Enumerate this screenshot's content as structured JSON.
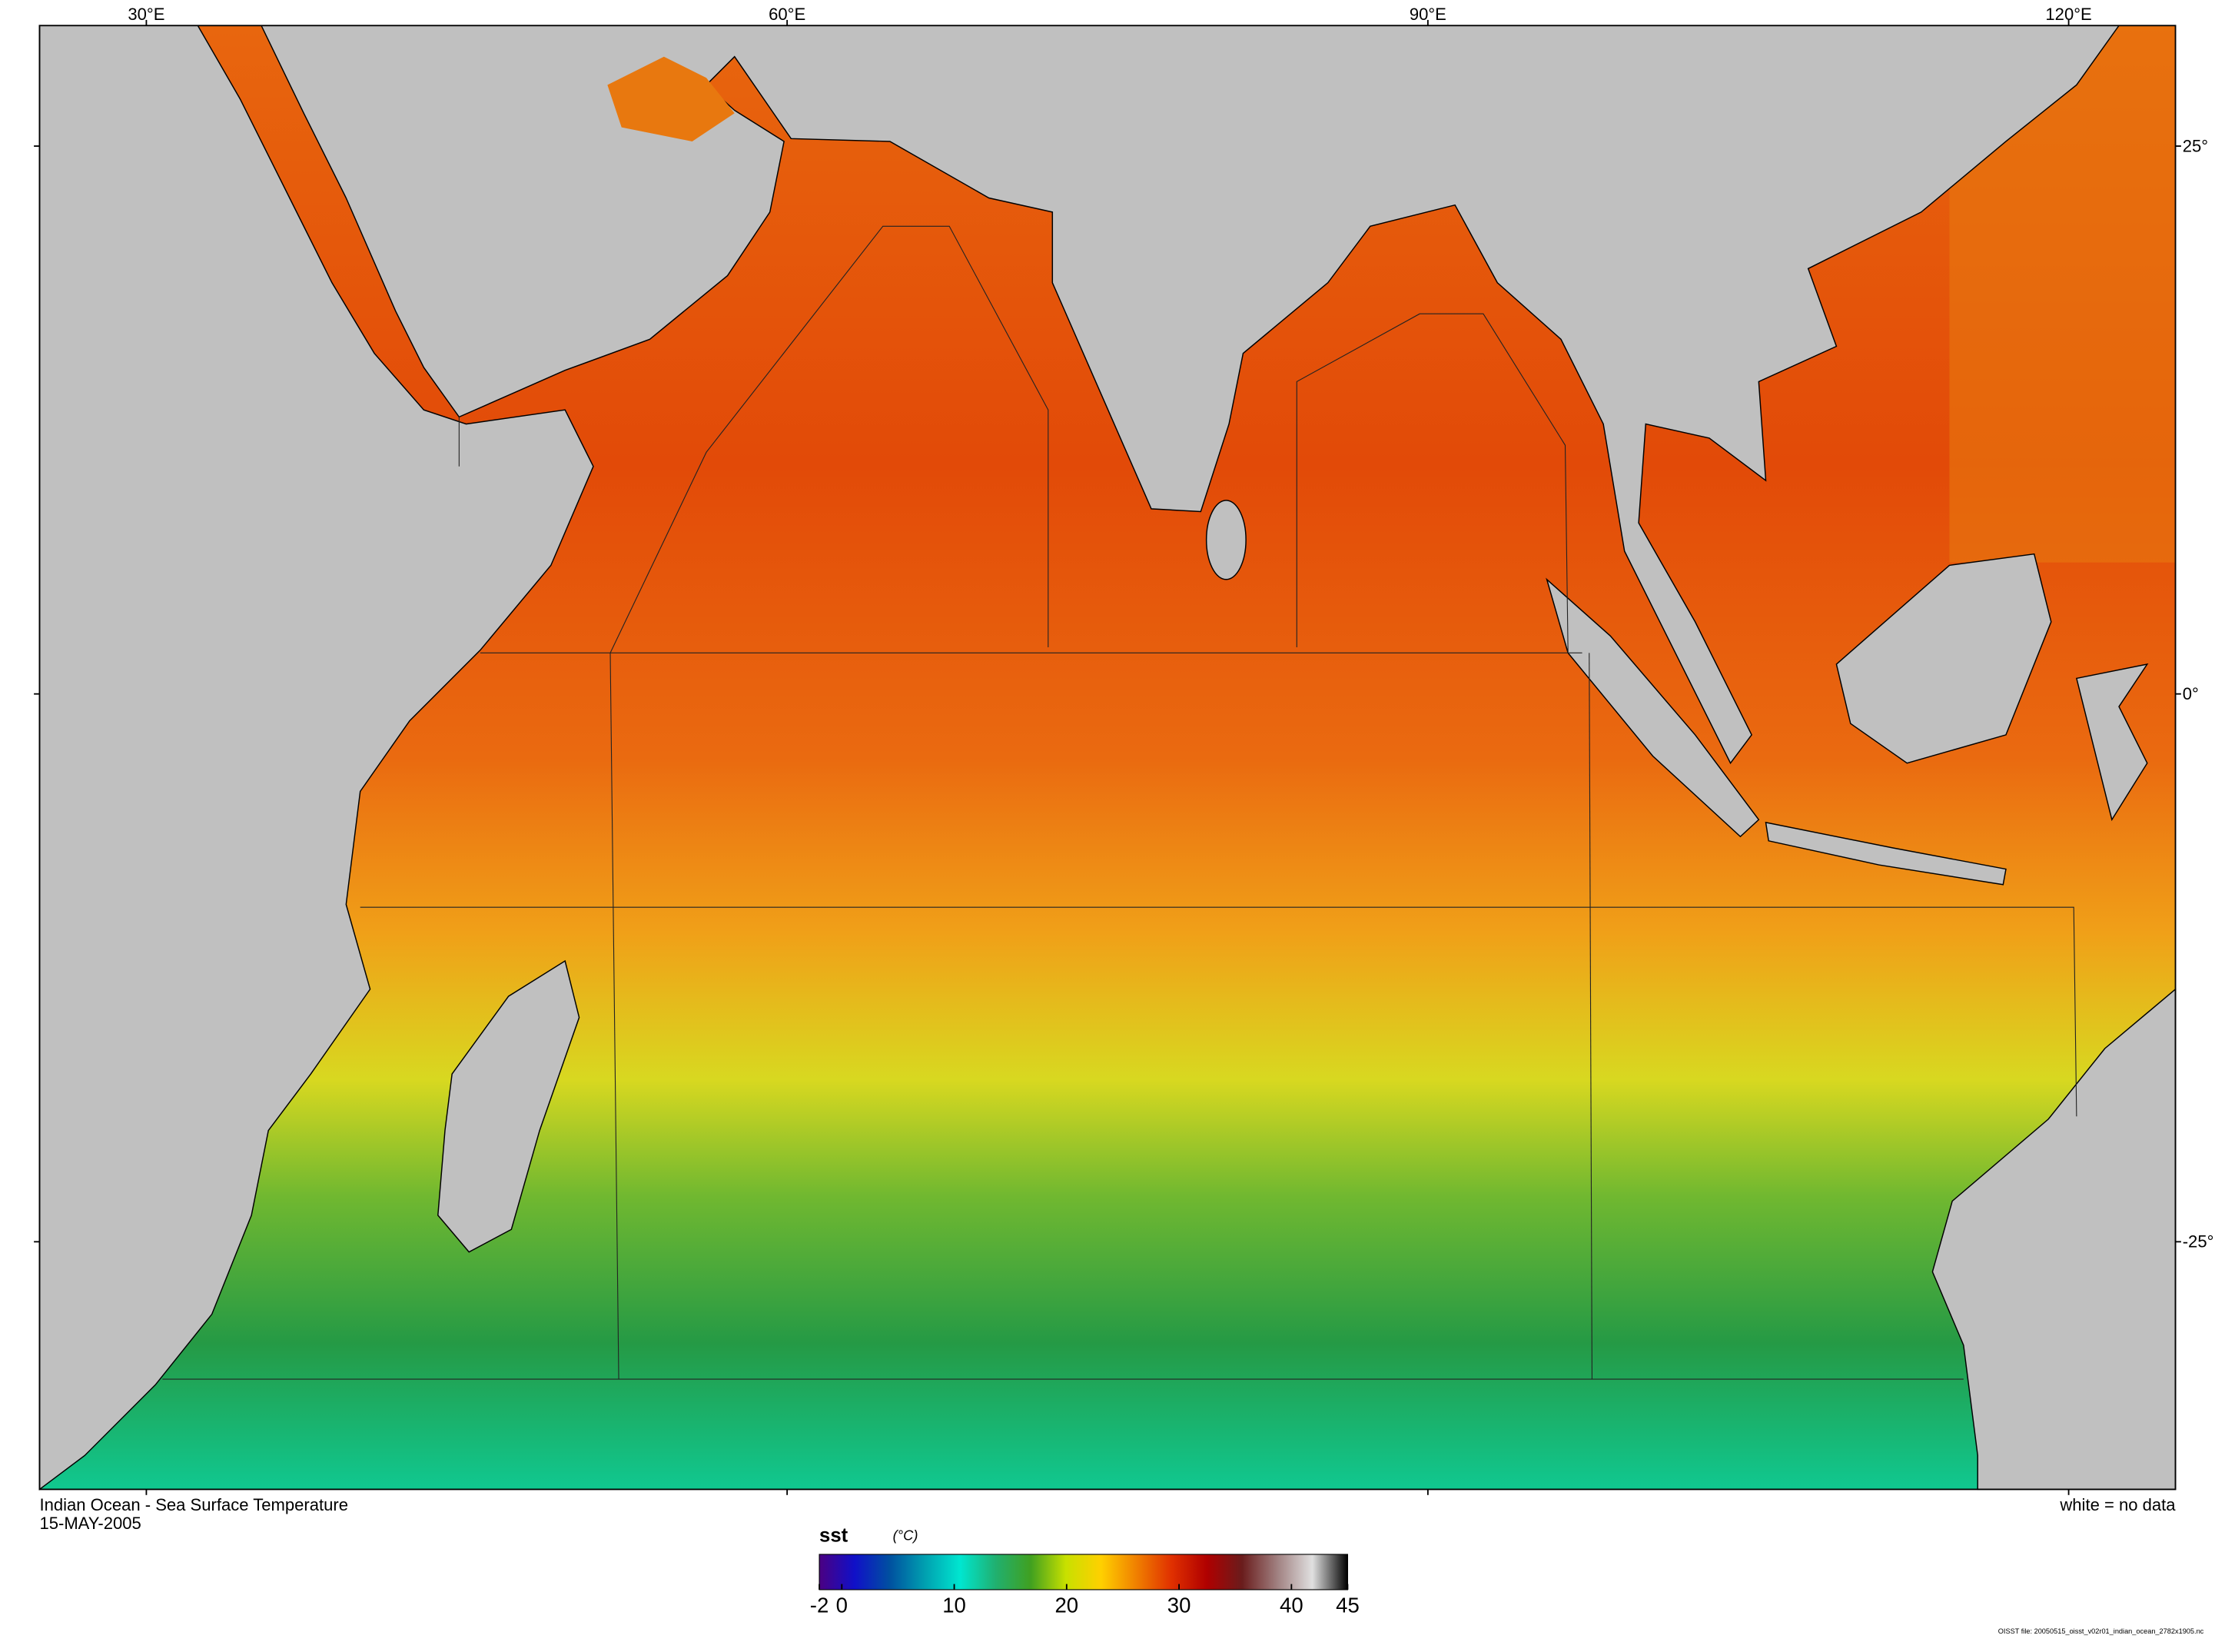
{
  "chart_data": {
    "type": "map",
    "title": "Indian Ocean - Sea Surface Temperature",
    "subtitle": "15-MAY-2005",
    "note": "white = no data",
    "footer": "OISST file: 20050515_oisst_v02r01_indian_ocean_2782x1905.nc",
    "xlim": [
      25,
      125
    ],
    "ylim": [
      -36.3,
      30.5
    ],
    "xticks": [
      {
        "value": 30,
        "label": "30°E"
      },
      {
        "value": 60,
        "label": "60°E"
      },
      {
        "value": 90,
        "label": "90°E"
      },
      {
        "value": 120,
        "label": "120°E"
      }
    ],
    "yticks": [
      {
        "value": 25,
        "label": "25°"
      },
      {
        "value": 0,
        "label": "0°"
      },
      {
        "value": -25,
        "label": "-25°"
      }
    ],
    "colorbar": {
      "label": "sst",
      "units": "(°C)",
      "lim": [
        -2,
        45
      ],
      "ticks": [
        -2,
        0,
        10,
        20,
        30,
        40,
        45
      ],
      "colors": [
        "#4b0082",
        "#1010c8",
        "#0050a0",
        "#00a0b0",
        "#00e6d0",
        "#20b070",
        "#40a020",
        "#c8e000",
        "#ffd000",
        "#f08000",
        "#e03000",
        "#b00000",
        "#6a1c1c",
        "#a08080",
        "#e0e0e0",
        "#000000"
      ]
    }
  }
}
